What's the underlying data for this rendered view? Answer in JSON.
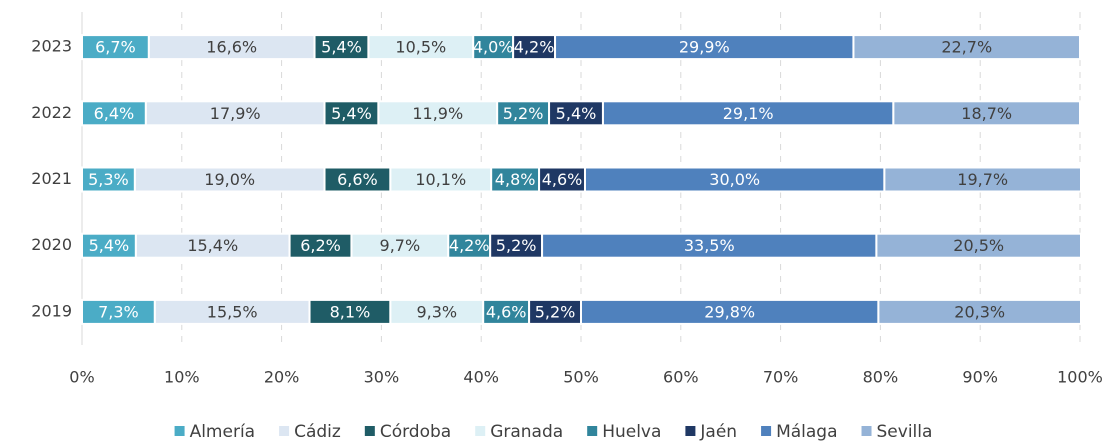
{
  "chart_data": {
    "type": "stacked-barh",
    "categories": [
      "2023",
      "2022",
      "2021",
      "2020",
      "2019"
    ],
    "series": [
      {
        "name": "Almería",
        "color": "#4bacc6",
        "values": [
          6.7,
          6.4,
          5.3,
          5.4,
          7.3
        ],
        "value_labels": [
          "6,7%",
          "6,4%",
          "5,3%",
          "5,4%",
          "7,3%"
        ]
      },
      {
        "name": "Cádiz",
        "color": "#dce6f2",
        "values": [
          16.6,
          17.9,
          19.0,
          15.4,
          15.5
        ],
        "value_labels": [
          "16,6%",
          "17,9%",
          "19,0%",
          "15,4%",
          "15,5%"
        ]
      },
      {
        "name": "Córdoba",
        "color": "#1f5c66",
        "values": [
          5.4,
          5.4,
          6.6,
          6.2,
          8.1
        ],
        "value_labels": [
          "5,4%",
          "5,4%",
          "6,6%",
          "6,2%",
          "8,1%"
        ]
      },
      {
        "name": "Granada",
        "color": "#ddf0f5",
        "values": [
          10.5,
          11.9,
          10.1,
          9.7,
          9.3
        ],
        "value_labels": [
          "10,5%",
          "11,9%",
          "10,1%",
          "9,7%",
          "9,3%"
        ]
      },
      {
        "name": "Huelva",
        "color": "#31859c",
        "values": [
          4.0,
          5.2,
          4.8,
          4.2,
          4.6
        ],
        "value_labels": [
          "4,0%",
          "5,2%",
          "4,8%",
          "4,2%",
          "4,6%"
        ]
      },
      {
        "name": "Jaén",
        "color": "#1f3864",
        "values": [
          4.2,
          5.4,
          4.6,
          5.2,
          5.2
        ],
        "value_labels": [
          "4,2%",
          "5,4%",
          "4,6%",
          "5,2%",
          "5,2%"
        ]
      },
      {
        "name": "Málaga",
        "color": "#4f81bd",
        "values": [
          29.9,
          29.1,
          30.0,
          33.5,
          29.8
        ],
        "value_labels": [
          "29,9%",
          "29,1%",
          "30,0%",
          "33,5%",
          "29,8%"
        ]
      },
      {
        "name": "Sevilla",
        "color": "#95b3d7",
        "values": [
          22.7,
          18.7,
          19.7,
          20.5,
          20.3
        ],
        "value_labels": [
          "22,7%",
          "18,7%",
          "19,7%",
          "20,5%",
          "20,3%"
        ]
      }
    ],
    "xlim": [
      0,
      100
    ],
    "xticks": [
      {
        "value": 0,
        "label": "0%"
      },
      {
        "value": 10,
        "label": "10%"
      },
      {
        "value": 20,
        "label": "20%"
      },
      {
        "value": 30,
        "label": "30%"
      },
      {
        "value": 40,
        "label": "40%"
      },
      {
        "value": 50,
        "label": "50%"
      },
      {
        "value": 60,
        "label": "60%"
      },
      {
        "value": 70,
        "label": "70%"
      },
      {
        "value": 80,
        "label": "80%"
      },
      {
        "value": 90,
        "label": "90%"
      },
      {
        "value": 100,
        "label": "100%"
      }
    ],
    "grid": true,
    "legend": "bottom"
  }
}
